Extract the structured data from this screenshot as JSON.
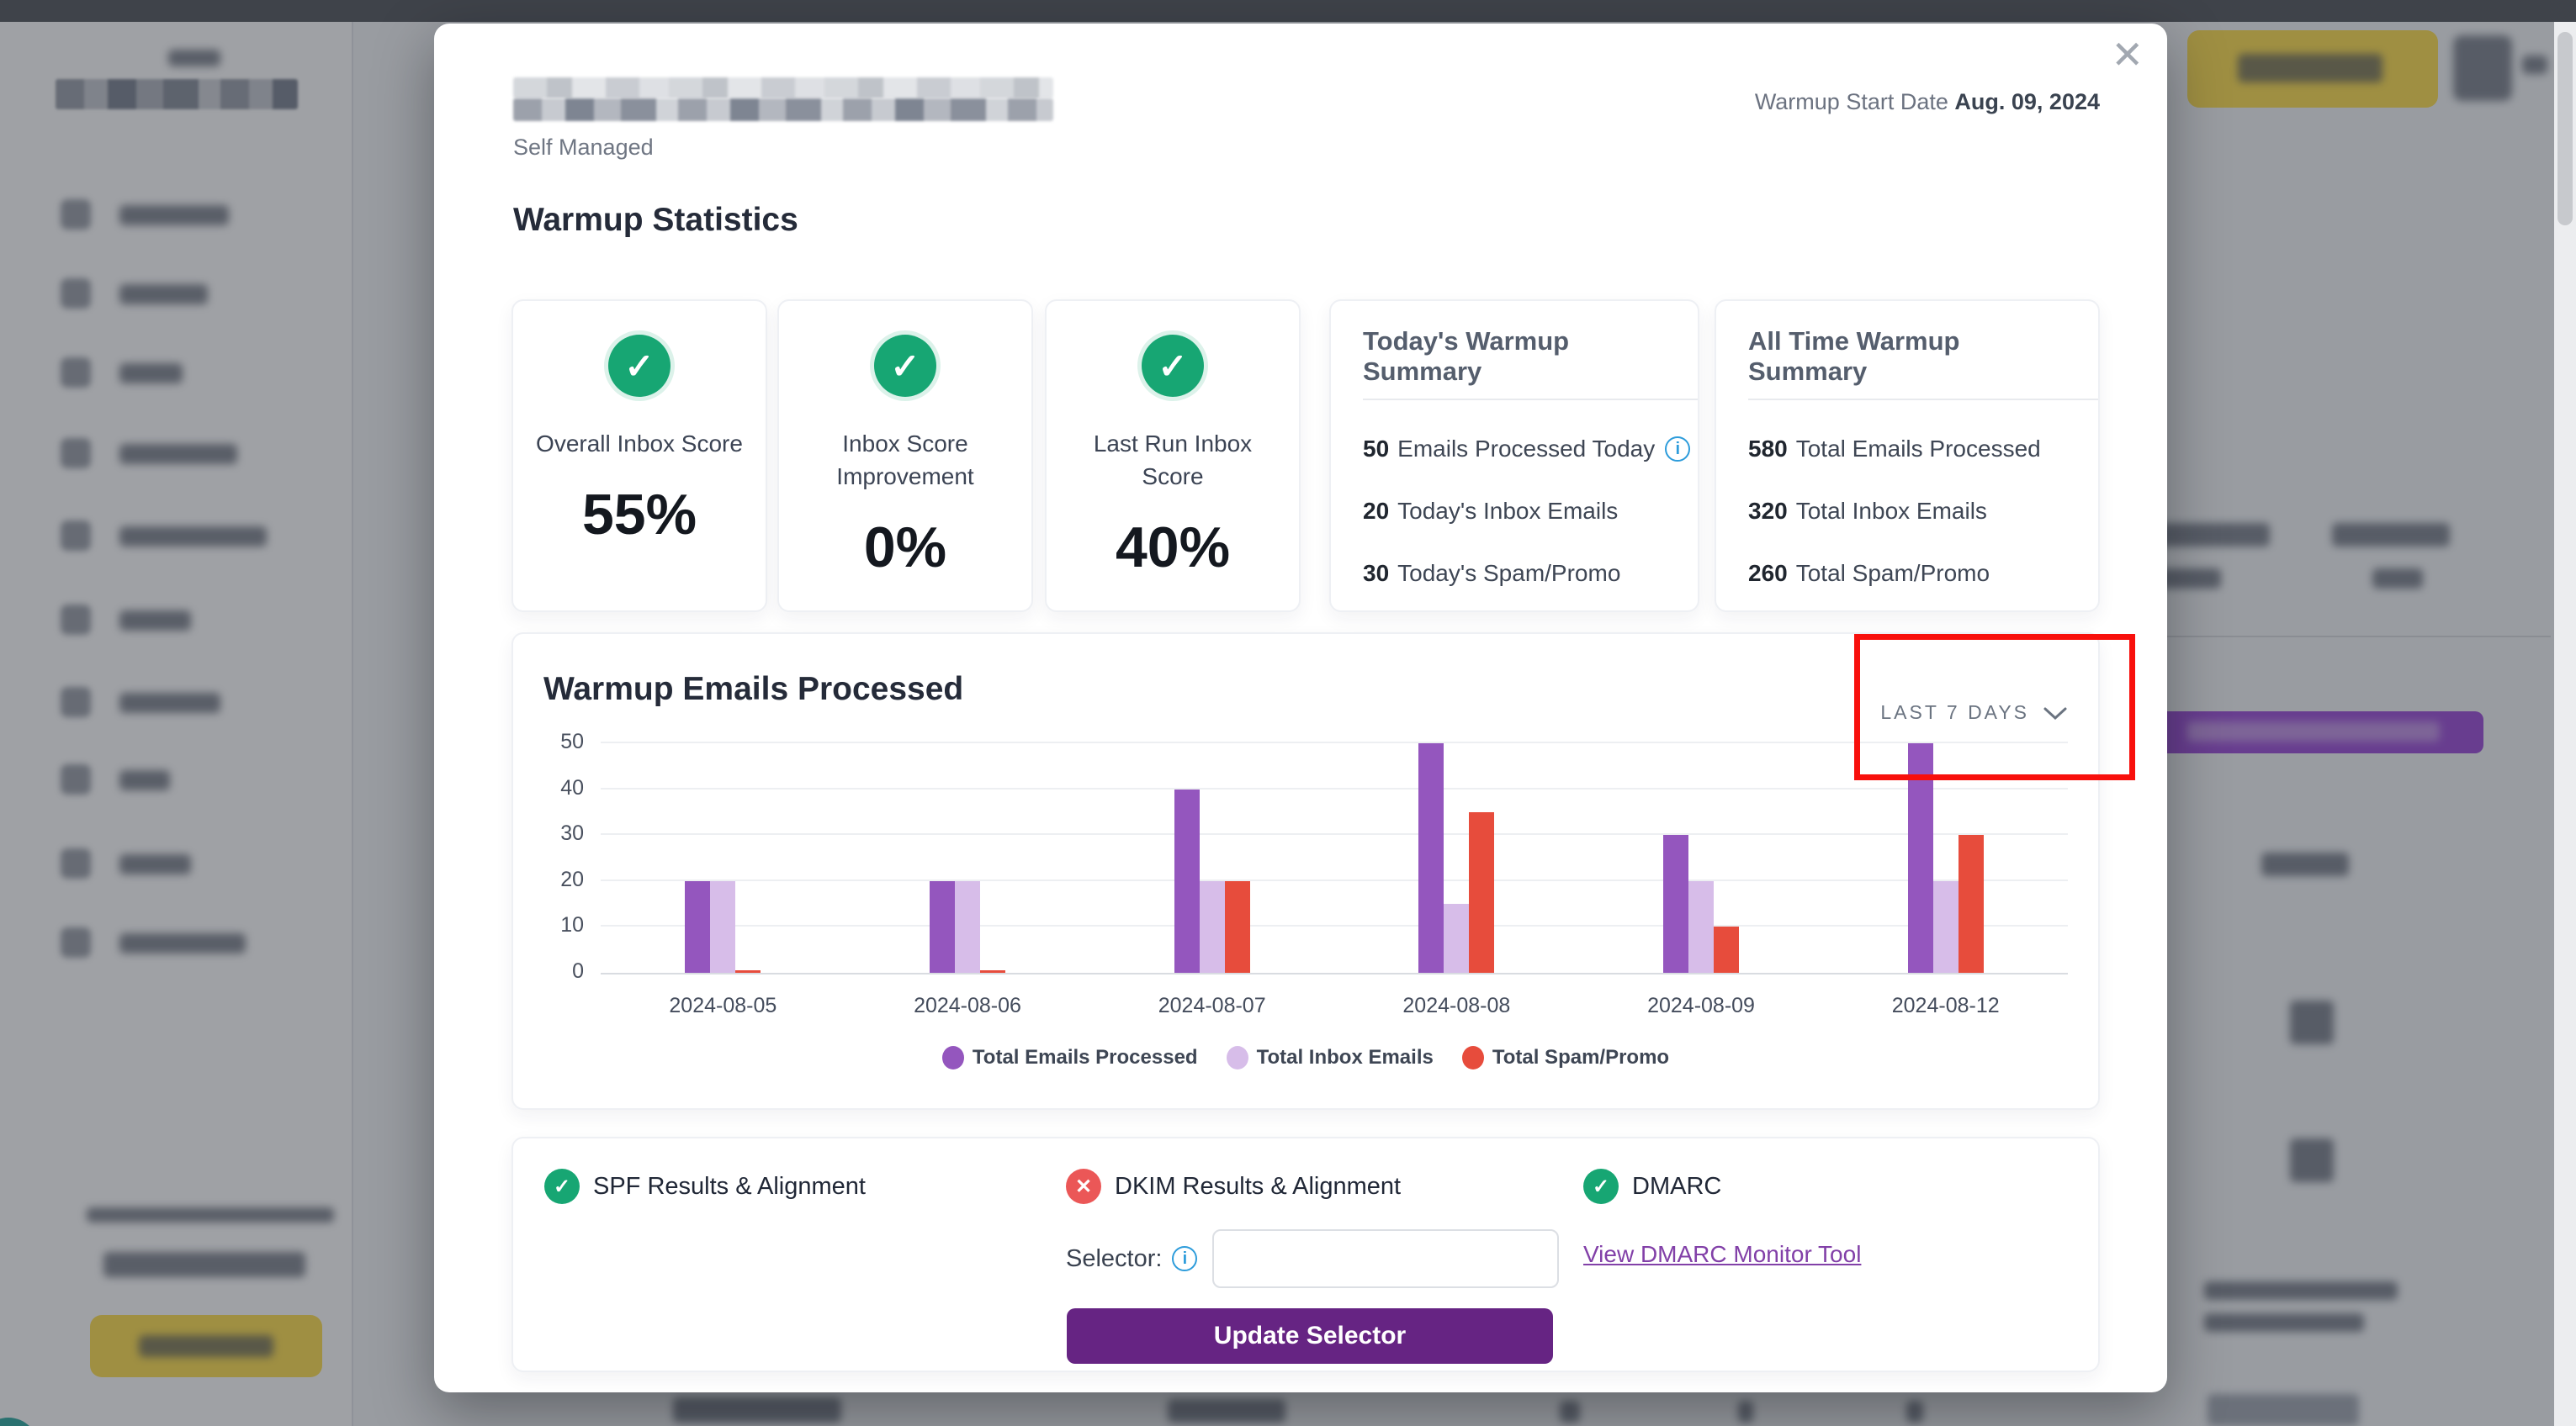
{
  "icons": {
    "close": "✕",
    "check": "✓",
    "cross": "✕",
    "info": "i"
  },
  "modal": {
    "account": {
      "subtitle": "Self Managed"
    },
    "warmup_start": {
      "label": "Warmup Start Date",
      "date": "Aug. 09, 2024"
    },
    "stats": {
      "title": "Warmup Statistics",
      "score_cards": [
        {
          "label": "Overall Inbox Score",
          "value": "55%"
        },
        {
          "label": "Inbox Score Improvement",
          "value": "0%"
        },
        {
          "label": "Last Run Inbox Score",
          "value": "40%"
        }
      ],
      "today_summary": {
        "title": "Today's Warmup Summary",
        "items": [
          {
            "value": "50",
            "label": "Emails Processed Today",
            "info": true
          },
          {
            "value": "20",
            "label": "Today's Inbox Emails"
          },
          {
            "value": "30",
            "label": "Today's Spam/Promo"
          }
        ]
      },
      "alltime_summary": {
        "title": "All Time Warmup Summary",
        "items": [
          {
            "value": "580",
            "label": "Total Emails Processed"
          },
          {
            "value": "320",
            "label": "Total Inbox Emails"
          },
          {
            "value": "260",
            "label": "Total Spam/Promo"
          }
        ]
      }
    },
    "chart_section": {
      "title": "Warmup Emails Processed",
      "range_label": "LAST 7 DAYS"
    },
    "auth": {
      "spf": {
        "label": "SPF Results & Alignment",
        "status": "pass"
      },
      "dkim": {
        "label": "DKIM Results & Alignment",
        "status": "fail"
      },
      "dmarc": {
        "label": "DMARC",
        "status": "pass"
      },
      "selector_label": "Selector:",
      "selector_value": "",
      "dmarc_link": "View DMARC Monitor Tool",
      "update_button": "Update Selector"
    }
  },
  "chart_data": {
    "type": "bar",
    "title": "Warmup Emails Processed",
    "categories": [
      "2024-08-05",
      "2024-08-06",
      "2024-08-07",
      "2024-08-08",
      "2024-08-09",
      "2024-08-12"
    ],
    "series": [
      {
        "name": "Total Emails Processed",
        "color": "#9456BE",
        "values": [
          20,
          20,
          40,
          50,
          30,
          50
        ]
      },
      {
        "name": "Total Inbox Emails",
        "color": "#D7BDE9",
        "values": [
          20,
          20,
          20,
          15,
          20,
          20
        ]
      },
      {
        "name": "Total Spam/Promo",
        "color": "#E74C3C",
        "values": [
          0,
          0,
          20,
          35,
          10,
          30
        ]
      }
    ],
    "ylim": [
      0,
      50
    ],
    "yticks": [
      0,
      10,
      20,
      30,
      40,
      50
    ],
    "grid": true,
    "legend_position": "bottom"
  },
  "colors": {
    "accent_green": "#17A673",
    "accent_red": "#EB5757",
    "button_purple": "#662483",
    "link_purple": "#8240A8",
    "brand_yellow": "#FFDF4F",
    "annotation_red": "#F8100C",
    "info_blue": "#2D9CDB"
  }
}
